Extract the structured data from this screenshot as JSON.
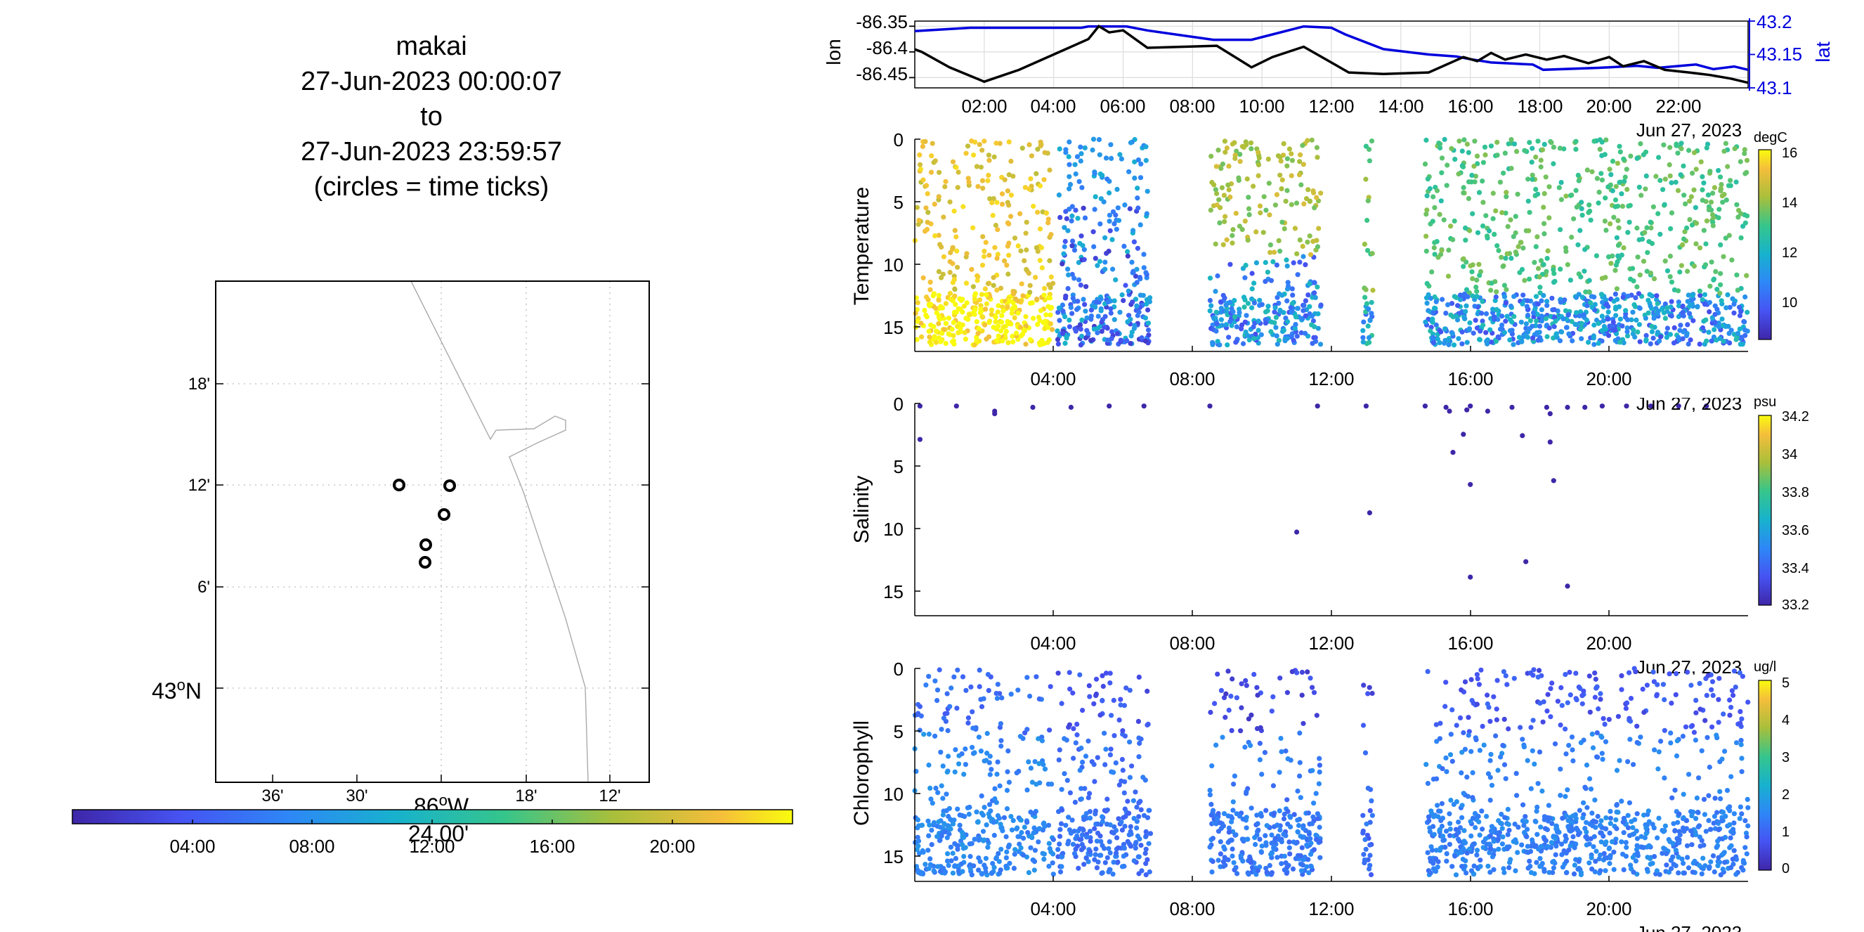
{
  "map_title": {
    "line1": "makai",
    "line2": "27-Jun-2023 00:00:07",
    "line3": "to",
    "line4": "27-Jun-2023 23:59:57",
    "line5": "(circles = time ticks)"
  },
  "map": {
    "lat_ticks": [
      "18'",
      "12'",
      "6'"
    ],
    "lat_main": "43",
    "lat_main_deg": "o",
    "lat_main_suffix": "N",
    "lon_ticks": [
      "36'",
      "30'",
      "18'",
      "12'"
    ],
    "lon_main": "86",
    "lon_main_deg": "o",
    "lon_main_suffix": "W",
    "lon_main_minutes": "24.00'"
  },
  "time_colorbar": {
    "ticks": [
      "04:00",
      "08:00",
      "12:00",
      "16:00",
      "20:00"
    ]
  },
  "chart_data": [
    {
      "type": "line",
      "name": "position",
      "ylabel": "lon",
      "y2label": "lat",
      "yticks": [
        "-86.35",
        "-86.4",
        "-86.45"
      ],
      "y2ticks": [
        "43.2",
        "43.15",
        "43.1"
      ],
      "xticks": [
        "02:00",
        "04:00",
        "06:00",
        "08:00",
        "10:00",
        "12:00",
        "14:00",
        "16:00",
        "18:00",
        "20:00",
        "22:00"
      ],
      "xnote": "Jun 27, 2023",
      "ylim": [
        -86.47,
        -86.34
      ],
      "y2lim": [
        43.1,
        43.2
      ],
      "xlim_hours": [
        0,
        24
      ],
      "series": [
        {
          "name": "lon",
          "x": [
            0,
            0.2,
            1,
            2,
            3,
            4,
            5,
            5.3,
            5.6,
            6,
            6.7,
            8.7,
            9.7,
            10.3,
            11.2,
            12.5,
            13.5,
            14.8,
            15.8,
            16.2,
            16.6,
            17,
            17.6,
            18.2,
            18.7,
            19.4,
            20,
            20.4,
            21,
            21.6,
            22.3,
            22.9,
            23.5,
            24
          ],
          "y": [
            -86.395,
            -86.4,
            -86.43,
            -86.458,
            -86.435,
            -86.405,
            -86.375,
            -86.35,
            -86.362,
            -86.358,
            -86.392,
            -86.388,
            -86.43,
            -86.41,
            -86.39,
            -86.44,
            -86.443,
            -86.44,
            -86.41,
            -86.418,
            -86.402,
            -86.415,
            -86.405,
            -86.415,
            -86.408,
            -86.422,
            -86.41,
            -86.428,
            -86.418,
            -86.435,
            -86.44,
            -86.445,
            -86.452,
            -86.46
          ]
        },
        {
          "name": "lat",
          "x": [
            0,
            1.6,
            3.3,
            4.8,
            5,
            6.1,
            6.7,
            8.6,
            9.7,
            10.3,
            11.2,
            12,
            12.4,
            13.5,
            14.8,
            15.6,
            16,
            16.6,
            17.8,
            18.1,
            19.7,
            20.8,
            21.4,
            22.5,
            23,
            23.6,
            24
          ],
          "y": [
            43.185,
            43.19,
            43.19,
            43.19,
            43.192,
            43.192,
            43.186,
            43.172,
            43.172,
            43.18,
            43.192,
            43.19,
            43.18,
            43.158,
            43.15,
            43.147,
            43.143,
            43.138,
            43.135,
            43.127,
            43.13,
            43.133,
            43.13,
            43.135,
            43.128,
            43.132,
            43.127
          ]
        }
      ]
    },
    {
      "type": "scatter",
      "name": "temperature",
      "ylabel": "Temperature",
      "yticks": [
        "0",
        "5",
        "10",
        "15"
      ],
      "ylim": [
        0,
        16.5
      ],
      "xticks": [
        "04:00",
        "08:00",
        "12:00",
        "16:00",
        "20:00"
      ],
      "xlim_hours": [
        0,
        24
      ],
      "colorbar_label": "degC",
      "colorbar_ticks": [
        "16",
        "14",
        "12",
        "10"
      ],
      "clim": [
        8.5,
        16.5
      ],
      "regions": [
        {
          "x": [
            0,
            4
          ],
          "shallow": 16.0,
          "deep": 15.2,
          "thermocline": 12
        },
        {
          "x": [
            4.1,
            6.8
          ],
          "shallow": 12.0,
          "deep": 9.0,
          "thermocline": 5
        },
        {
          "x": [
            8.5,
            11.7
          ],
          "shallow": 15.0,
          "deep": 9.5,
          "thermocline": 9
        },
        {
          "x": [
            12.9,
            13.2
          ],
          "shallow": 14.5,
          "deep": 10.0,
          "thermocline": 12
        },
        {
          "x": [
            14.7,
            24
          ],
          "shallow": 14.0,
          "deep": 9.5,
          "thermocline": 12
        }
      ]
    },
    {
      "type": "scatter",
      "name": "salinity",
      "ylabel": "Salinity",
      "yticks": [
        "0",
        "5",
        "10",
        "15"
      ],
      "ylim": [
        0,
        16.5
      ],
      "xticks": [
        "04:00",
        "08:00",
        "12:00",
        "16:00",
        "20:00"
      ],
      "xlim_hours": [
        0,
        24
      ],
      "colorbar_label": "psu",
      "colorbar_ticks": [
        "34.2",
        "34",
        "33.8",
        "33.6",
        "33.4",
        "33.2"
      ],
      "points": [
        [
          0.15,
          0.2
        ],
        [
          0.15,
          2.8
        ],
        [
          1.2,
          0.2
        ],
        [
          2.3,
          0.6
        ],
        [
          2.3,
          0.8
        ],
        [
          3.4,
          0.3
        ],
        [
          4.5,
          0.3
        ],
        [
          5.6,
          0.2
        ],
        [
          6.6,
          0.2
        ],
        [
          8.5,
          0.2
        ],
        [
          11.0,
          10.0
        ],
        [
          11.6,
          0.2
        ],
        [
          13.0,
          0.2
        ],
        [
          13.1,
          8.5
        ],
        [
          14.7,
          0.2
        ],
        [
          15.3,
          0.3
        ],
        [
          15.4,
          0.6
        ],
        [
          15.5,
          3.8
        ],
        [
          15.8,
          2.4
        ],
        [
          15.9,
          0.5
        ],
        [
          16.0,
          0.2
        ],
        [
          16.0,
          6.3
        ],
        [
          16.0,
          13.5
        ],
        [
          16.5,
          0.6
        ],
        [
          17.2,
          0.3
        ],
        [
          17.6,
          12.3
        ],
        [
          17.5,
          2.5
        ],
        [
          18.2,
          0.3
        ],
        [
          18.3,
          0.8
        ],
        [
          18.3,
          3.0
        ],
        [
          18.4,
          6.0
        ],
        [
          18.8,
          0.3
        ],
        [
          18.8,
          14.2
        ],
        [
          19.3,
          0.3
        ],
        [
          19.8,
          0.2
        ],
        [
          20.5,
          0.2
        ],
        [
          21.2,
          0.2
        ],
        [
          22.0,
          0.2
        ],
        [
          22.8,
          0.2
        ]
      ]
    },
    {
      "type": "scatter",
      "name": "chlorophyll",
      "ylabel": "Chlorophyll",
      "yticks": [
        "0",
        "5",
        "10",
        "15"
      ],
      "ylim": [
        0,
        16.5
      ],
      "xticks": [
        "04:00",
        "08:00",
        "12:00",
        "16:00",
        "20:00"
      ],
      "xlim_hours": [
        0,
        24
      ],
      "colorbar_label": "ug/l",
      "colorbar_ticks": [
        "5",
        "4",
        "3",
        "2",
        "1",
        "0"
      ],
      "clim": [
        0,
        5.2
      ],
      "regions": [
        {
          "x": [
            0,
            4
          ],
          "surface": 0.8,
          "deep": 1.2
        },
        {
          "x": [
            4.1,
            6.8
          ],
          "surface": 0.5,
          "deep": 0.9
        },
        {
          "x": [
            8.5,
            11.7
          ],
          "surface": 0.3,
          "deep": 1.0
        },
        {
          "x": [
            12.9,
            13.2
          ],
          "surface": 0.3,
          "deep": 0.8
        },
        {
          "x": [
            14.7,
            24
          ],
          "surface": 0.5,
          "deep": 1.1
        }
      ]
    }
  ],
  "date_note": "Jun 27, 2023",
  "colors": {
    "lon_line": "#000000",
    "lat_line": "#0000dd",
    "map_circle": "#000000",
    "coast": "#aaaaaa",
    "grid": "#d6d6d6"
  }
}
